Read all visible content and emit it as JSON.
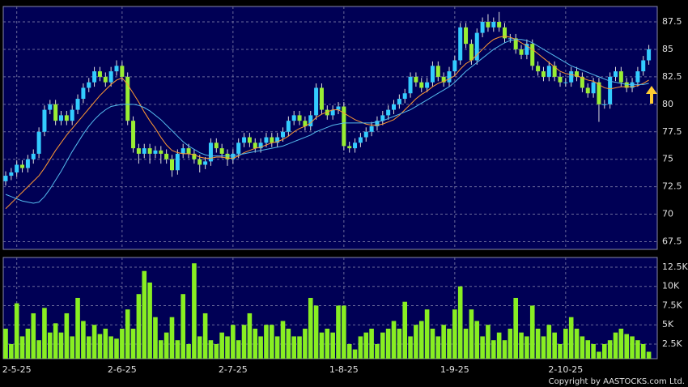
{
  "chart_data": [
    {
      "type": "candlestick",
      "categories": [
        null,
        null,
        "2-5-25",
        null,
        null,
        null,
        null,
        null,
        null,
        null,
        null,
        null,
        null,
        null,
        null,
        null,
        null,
        null,
        null,
        null,
        null,
        "2-6-25",
        null,
        null,
        null,
        null,
        null,
        null,
        null,
        null,
        null,
        null,
        null,
        null,
        null,
        null,
        null,
        null,
        null,
        null,
        null,
        "2-7-25",
        null,
        null,
        null,
        null,
        null,
        null,
        null,
        null,
        null,
        null,
        null,
        null,
        null,
        null,
        null,
        null,
        null,
        null,
        null,
        "1-8-25",
        null,
        null,
        null,
        null,
        null,
        null,
        null,
        null,
        null,
        null,
        null,
        null,
        null,
        null,
        null,
        null,
        null,
        null,
        null,
        "1-9-25",
        null,
        null,
        null,
        null,
        null,
        null,
        null,
        null,
        null,
        null,
        null,
        null,
        null,
        null,
        null,
        null,
        null,
        null,
        null,
        "2-10-25",
        null,
        null,
        null,
        null,
        null,
        null,
        null,
        null,
        null,
        null,
        null,
        null,
        null,
        null,
        null
      ],
      "open": [
        73,
        73.5,
        73.8,
        74.5,
        74.2,
        75,
        75.5,
        77.5,
        79.5,
        80,
        78.5,
        79,
        78.5,
        79.5,
        80.5,
        81.5,
        82,
        83,
        82.5,
        82,
        83,
        83.5,
        82.5,
        78.5,
        76,
        75.5,
        76,
        75.5,
        75.8,
        75.5,
        75,
        74,
        75.5,
        76,
        75.5,
        75,
        74.5,
        74.8,
        76.5,
        76,
        75.5,
        75,
        75.5,
        76.5,
        77,
        76.5,
        76,
        76.5,
        77,
        76.5,
        77,
        77.5,
        78.5,
        79,
        78.5,
        78,
        79,
        81.5,
        79.5,
        79,
        79.5,
        79.8,
        76.2,
        76,
        76.5,
        77,
        77.5,
        78,
        78.5,
        79,
        79.5,
        80,
        80.5,
        81,
        82.5,
        82,
        81.5,
        82,
        83.5,
        82.5,
        82,
        83,
        84,
        87,
        85.5,
        84,
        86.5,
        87.5,
        87,
        87.5,
        87,
        86,
        86,
        85,
        84.5,
        85.5,
        83.5,
        83,
        82.5,
        83.5,
        82.5,
        82,
        82,
        83,
        82.5,
        81.5,
        81,
        82,
        80,
        80,
        82.5,
        83,
        82,
        81.5,
        82,
        83,
        84
      ],
      "high": [
        73.9,
        74.2,
        74.9,
        74.9,
        75.4,
        75.9,
        77.9,
        79.9,
        80.4,
        80.4,
        79.4,
        79.4,
        79.9,
        80.9,
        81.9,
        82.4,
        83.4,
        83.4,
        82.9,
        83.4,
        84,
        83.9,
        82.9,
        78.9,
        76.4,
        76.4,
        76.4,
        76.2,
        76.2,
        75.9,
        75.4,
        75.9,
        76.4,
        76.4,
        75.9,
        75.4,
        75.2,
        76.9,
        76.9,
        76.4,
        75.9,
        75.9,
        76.9,
        77.4,
        77.4,
        76.9,
        76.9,
        77.4,
        77.4,
        77.4,
        77.9,
        78.9,
        79.4,
        79.4,
        78.9,
        79.4,
        81.9,
        81.9,
        79.9,
        79.9,
        80.2,
        80.2,
        76.6,
        76.9,
        77.4,
        77.9,
        78.4,
        78.9,
        79.4,
        79.9,
        80.4,
        80.9,
        81.4,
        82.9,
        82.9,
        82.4,
        82.4,
        83.9,
        83.9,
        82.9,
        83.4,
        84.4,
        87.4,
        87.4,
        85.9,
        86.9,
        87.9,
        88.2,
        87.9,
        88.4,
        87.4,
        86.4,
        86.4,
        85.4,
        85.9,
        85.9,
        83.9,
        83.4,
        83.9,
        83.9,
        82.9,
        82.4,
        83.4,
        83.4,
        82.9,
        81.9,
        82.4,
        82.4,
        80.4,
        82.9,
        83.4,
        83.4,
        82.4,
        82.4,
        83.4,
        84.4,
        85.4
      ],
      "low": [
        72.6,
        73.1,
        73.4,
        73.8,
        73.8,
        74.6,
        75.1,
        77.1,
        79.1,
        78.1,
        78.1,
        78.1,
        78.1,
        79.1,
        80.1,
        81.1,
        81.6,
        82.1,
        81.6,
        81.6,
        82.6,
        82.1,
        78.1,
        75.6,
        74.6,
        75.1,
        74.6,
        75.1,
        74.6,
        74.6,
        73.4,
        73.6,
        75.1,
        75.1,
        74.6,
        73.8,
        74.1,
        74.4,
        75.6,
        75.1,
        74.4,
        74.6,
        75.1,
        76.1,
        76.1,
        75.6,
        75.6,
        76.1,
        76.1,
        76.1,
        76.6,
        77.1,
        78.1,
        78.1,
        77.6,
        77.6,
        78.6,
        79.1,
        78.6,
        78.6,
        79.1,
        75.8,
        75.6,
        75.6,
        76.1,
        76.6,
        77.1,
        77.6,
        78.1,
        78.6,
        79.1,
        79.6,
        80.1,
        80.6,
        81.6,
        81.1,
        81.1,
        81.6,
        82.1,
        81.6,
        81.6,
        82.6,
        83.6,
        85.1,
        83.6,
        83.6,
        86.1,
        86.6,
        86.6,
        86.6,
        85.6,
        85.6,
        84.6,
        84.1,
        84.1,
        83.1,
        82.6,
        82.1,
        82.1,
        82.1,
        81.6,
        81.6,
        81.6,
        82.1,
        81.1,
        80.6,
        80.6,
        78.4,
        79.6,
        79.6,
        82.1,
        81.6,
        81.1,
        81.1,
        81.6,
        82.6,
        83.6
      ],
      "close": [
        73.5,
        73.8,
        74.5,
        74.2,
        75,
        75.5,
        77.5,
        79.5,
        80,
        78.5,
        79,
        78.5,
        79.5,
        80.5,
        81.5,
        82,
        83,
        82.5,
        82,
        83,
        83.5,
        82.5,
        78.5,
        76,
        75.5,
        76,
        75.5,
        75.8,
        75.5,
        75,
        74,
        75.5,
        76,
        75.5,
        75,
        74.5,
        74.8,
        76.5,
        76,
        75.5,
        75,
        75.5,
        76.5,
        77,
        76.5,
        76,
        76.5,
        77,
        76.5,
        77,
        77.5,
        78.5,
        79,
        78.5,
        78,
        79,
        81.5,
        79.5,
        79,
        79.5,
        79.8,
        76.2,
        76,
        76.5,
        77,
        77.5,
        78,
        78.5,
        79,
        79.5,
        80,
        80.5,
        81,
        82.5,
        82,
        81.5,
        82,
        83.5,
        82.5,
        82,
        83,
        84,
        87,
        85.5,
        84,
        86.5,
        87.5,
        87,
        87.5,
        87,
        86,
        86,
        85,
        84.5,
        85.5,
        83.5,
        83,
        82.5,
        83.5,
        82.5,
        82,
        82,
        83,
        82.5,
        81.5,
        81,
        82,
        80,
        80,
        82.5,
        83,
        82,
        81.5,
        82,
        83,
        84,
        85
      ],
      "up_color": "#33ccff",
      "down_color": "#99ee33",
      "series": [
        {
          "color": "#ff9933",
          "values": [
            70.5,
            71,
            71.5,
            72,
            72.5,
            73,
            73.5,
            74.2,
            75,
            75.8,
            76.5,
            77.2,
            77.8,
            78.4,
            79,
            79.6,
            80.2,
            80.8,
            81.3,
            81.8,
            82.2,
            82.4,
            81.8,
            81,
            80.2,
            79.3,
            78.5,
            77.8,
            77,
            76.3,
            75.8,
            75.6,
            75.5,
            75.5,
            75.4,
            75.2,
            75.1,
            75.1,
            75.2,
            75.2,
            75.1,
            75.1,
            75.3,
            75.6,
            75.8,
            76,
            76.1,
            76.3,
            76.5,
            76.6,
            76.8,
            77.1,
            77.5,
            77.8,
            78,
            78.3,
            78.8,
            79.1,
            79.3,
            79.5,
            79.5,
            79.2,
            78.9,
            78.6,
            78.4,
            78.2,
            78.1,
            78.1,
            78.2,
            78.4,
            78.6,
            79,
            79.5,
            80,
            80.5,
            80.9,
            81.2,
            81.6,
            81.9,
            82.1,
            82.3,
            82.6,
            83.2,
            83.7,
            84,
            84.5,
            85,
            85.5,
            85.9,
            86.1,
            86.2,
            86.1,
            85.9,
            85.6,
            85.3,
            85,
            84.6,
            84.2,
            83.8,
            83.4,
            83,
            82.8,
            82.7,
            82.6,
            82.4,
            82.2,
            82.1,
            81.8,
            81.5,
            81.4,
            81.5,
            81.6,
            81.6,
            81.6,
            81.7,
            81.9,
            82.2
          ]
        },
        {
          "color": "#55bbee",
          "values": [
            71.8,
            71.6,
            71.4,
            71.2,
            71.1,
            71,
            71.1,
            71.6,
            72.3,
            73.1,
            73.9,
            74.8,
            75.7,
            76.5,
            77.3,
            78,
            78.6,
            79.1,
            79.5,
            79.8,
            79.9,
            80,
            80,
            80,
            79.9,
            79.7,
            79.4,
            79,
            78.6,
            78.1,
            77.6,
            77.1,
            76.6,
            76.2,
            75.9,
            75.6,
            75.4,
            75.3,
            75.3,
            75.3,
            75.3,
            75.3,
            75.4,
            75.5,
            75.6,
            75.7,
            75.8,
            75.9,
            76,
            76.1,
            76.2,
            76.4,
            76.6,
            76.8,
            77,
            77.2,
            77.5,
            77.7,
            77.9,
            78.1,
            78.2,
            78.3,
            78.3,
            78.3,
            78.3,
            78.3,
            78.3,
            78.4,
            78.5,
            78.7,
            78.9,
            79.1,
            79.3,
            79.5,
            79.8,
            80.1,
            80.4,
            80.7,
            81,
            81.3,
            81.6,
            82,
            82.5,
            83,
            83.4,
            83.8,
            84.2,
            84.6,
            85,
            85.3,
            85.6,
            85.8,
            85.9,
            85.9,
            85.8,
            85.6,
            85.3,
            85,
            84.7,
            84.4,
            84.1,
            83.8,
            83.5,
            83.3,
            83.1,
            82.9,
            82.7,
            82.5,
            82.3,
            82.1,
            82,
            81.9,
            81.8,
            81.8,
            81.8,
            81.8,
            81.9
          ]
        }
      ],
      "ylim": [
        66.8,
        88.9
      ],
      "yticks": [
        67.5,
        70,
        72.5,
        75,
        77.5,
        80,
        82.5,
        85,
        87.5
      ],
      "grid": true
    },
    {
      "type": "bar",
      "values": [
        4500,
        2500,
        7800,
        3500,
        4500,
        6500,
        3000,
        7200,
        4000,
        5200,
        4000,
        6500,
        3500,
        8500,
        5500,
        3500,
        5000,
        3800,
        4500,
        3500,
        3200,
        4500,
        7000,
        4500,
        9000,
        12000,
        10500,
        6000,
        3000,
        4000,
        6000,
        3000,
        9000,
        2500,
        13000,
        3500,
        6500,
        3000,
        2500,
        4000,
        3500,
        5000,
        3000,
        5000,
        6500,
        4500,
        3500,
        5000,
        5000,
        3500,
        5500,
        4500,
        3500,
        3500,
        4500,
        8500,
        7500,
        4000,
        4500,
        4000,
        7500,
        7500,
        2500,
        1800,
        3500,
        4000,
        4500,
        2500,
        4000,
        4500,
        5500,
        4500,
        8000,
        3500,
        5000,
        5500,
        7000,
        4500,
        3500,
        5000,
        4500,
        7000,
        10000,
        4500,
        7000,
        5500,
        3500,
        5000,
        3000,
        4000,
        3000,
        4500,
        8500,
        4000,
        3500,
        7500,
        4500,
        3500,
        5000,
        4000,
        2500,
        4500,
        6000,
        4500,
        3500,
        3000,
        2500,
        1500,
        2500,
        3000,
        4000,
        4500,
        3800,
        3500,
        3000,
        2500,
        1500
      ],
      "color": "#88ee22",
      "ylim": [
        600,
        13760
      ],
      "yticks": [
        {
          "value": 2500,
          "label": "2.5K"
        },
        {
          "value": 5000,
          "label": "5K"
        },
        {
          "value": 7500,
          "label": "7.5K"
        },
        {
          "value": 10000,
          "label": "10K"
        },
        {
          "value": 12500,
          "label": "12.5K"
        }
      ],
      "grid": true,
      "footer": "Copyright by AASTOCKS.com Ltd."
    }
  ]
}
